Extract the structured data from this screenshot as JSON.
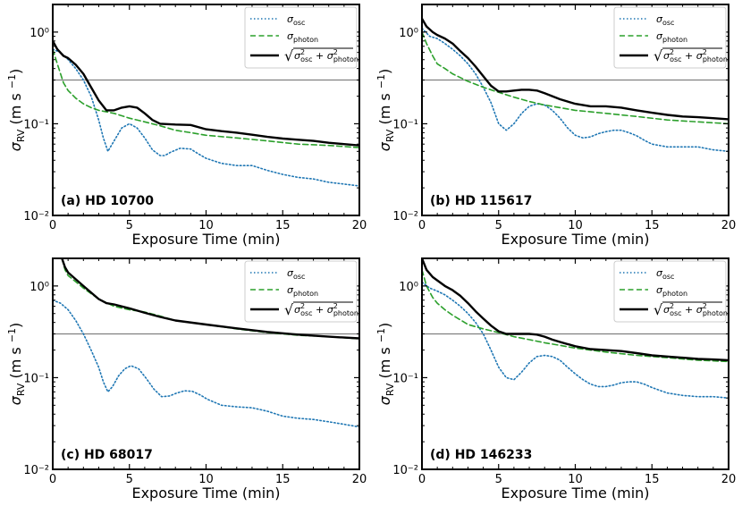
{
  "figure": {
    "xlabel": "Exposure Time (min)",
    "ylabel_main": "σ",
    "ylabel_sub": "RV",
    "ylabel_units": "(m s",
    "ylabel_exp": "−1",
    "ylabel_close": ")"
  },
  "legend": {
    "osc_symbol": "σ",
    "osc_sub": "osc",
    "photon_symbol": "σ",
    "photon_sub": "photon",
    "total_sqrt": "√",
    "total_sigma1": "σ",
    "total_sup1": "2",
    "total_sub1": "osc",
    "total_plus": "+",
    "total_sigma2": "σ",
    "total_sup2": "2",
    "total_sub2": "photon"
  },
  "colors": {
    "osc": "#1f77b4",
    "photon": "#2ca02c",
    "total": "#000000",
    "threshold": "#808080"
  },
  "chart_data": [
    {
      "type": "line",
      "title": "(a) HD 10700",
      "xlabel": "Exposure Time (min)",
      "ylabel": "σ_RV (m s^-1)",
      "xlim": [
        0,
        20
      ],
      "ylim": [
        0.01,
        2
      ],
      "yscale": "log",
      "xticks": [
        "0",
        "5",
        "10",
        "15",
        "20"
      ],
      "yticks": [
        "10⁰",
        "10⁻¹",
        "10⁻²"
      ],
      "threshold": 0.3,
      "series": [
        {
          "name": "σ_osc",
          "style": "dotted",
          "x": [
            0,
            0.5,
            1,
            1.5,
            2,
            2.5,
            3,
            3.3,
            3.6,
            4,
            4.5,
            5,
            5.5,
            6,
            6.5,
            7,
            7.3,
            7.7,
            8.3,
            9,
            9.5,
            10,
            11,
            12,
            13,
            14,
            15,
            16,
            17,
            18,
            19,
            20
          ],
          "y": [
            0.65,
            0.6,
            0.5,
            0.4,
            0.3,
            0.2,
            0.11,
            0.07,
            0.05,
            0.065,
            0.09,
            0.1,
            0.09,
            0.07,
            0.052,
            0.045,
            0.045,
            0.049,
            0.054,
            0.053,
            0.047,
            0.042,
            0.037,
            0.035,
            0.035,
            0.031,
            0.028,
            0.026,
            0.025,
            0.023,
            0.022,
            0.021
          ]
        },
        {
          "name": "σ_photon",
          "style": "dashed",
          "x": [
            0,
            0.3,
            0.7,
            1,
            1.5,
            2,
            2.5,
            3,
            4,
            5,
            6,
            7,
            8,
            9,
            10,
            12,
            14,
            16,
            18,
            20
          ],
          "y": [
            0.65,
            0.45,
            0.28,
            0.23,
            0.19,
            0.165,
            0.15,
            0.14,
            0.13,
            0.115,
            0.105,
            0.095,
            0.085,
            0.08,
            0.075,
            0.07,
            0.065,
            0.06,
            0.058,
            0.055
          ]
        },
        {
          "name": "total",
          "style": "solid",
          "x": [
            0,
            0.3,
            0.7,
            1,
            1.5,
            2,
            2.5,
            3,
            3.5,
            4,
            4.5,
            5,
            5.5,
            6,
            6.5,
            7,
            8,
            9,
            10,
            11,
            12,
            13,
            14,
            15,
            16,
            17,
            18,
            19,
            20
          ],
          "y": [
            0.8,
            0.65,
            0.55,
            0.52,
            0.44,
            0.35,
            0.25,
            0.18,
            0.14,
            0.14,
            0.15,
            0.155,
            0.15,
            0.13,
            0.11,
            0.1,
            0.098,
            0.097,
            0.087,
            0.083,
            0.08,
            0.076,
            0.072,
            0.069,
            0.067,
            0.065,
            0.062,
            0.06,
            0.058
          ]
        }
      ]
    },
    {
      "type": "line",
      "title": "(b) HD 115617",
      "xlabel": "Exposure Time (min)",
      "ylabel": "σ_RV (m s^-1)",
      "xlim": [
        0,
        20
      ],
      "ylim": [
        0.01,
        2
      ],
      "yscale": "log",
      "xticks": [
        "0",
        "5",
        "10",
        "15",
        "20"
      ],
      "yticks": [
        "10⁰",
        "10⁻¹",
        "10⁻²"
      ],
      "threshold": 0.3,
      "series": [
        {
          "name": "σ_osc",
          "style": "dotted",
          "x": [
            0,
            0.5,
            1,
            1.5,
            2,
            2.5,
            3,
            3.5,
            4,
            4.5,
            5,
            5.5,
            6,
            6.5,
            7,
            7.5,
            8,
            8.5,
            9,
            9.5,
            10,
            10.5,
            11,
            11.5,
            12,
            12.5,
            13,
            13.5,
            14,
            14.5,
            15,
            16,
            17,
            18,
            19,
            20
          ],
          "y": [
            1.1,
            0.9,
            0.85,
            0.75,
            0.65,
            0.55,
            0.45,
            0.35,
            0.25,
            0.17,
            0.1,
            0.085,
            0.1,
            0.13,
            0.155,
            0.165,
            0.16,
            0.14,
            0.115,
            0.09,
            0.075,
            0.07,
            0.072,
            0.078,
            0.082,
            0.085,
            0.085,
            0.08,
            0.074,
            0.066,
            0.06,
            0.056,
            0.056,
            0.056,
            0.052,
            0.05
          ]
        },
        {
          "name": "σ_photon",
          "style": "dashed",
          "x": [
            0,
            0.3,
            0.7,
            1,
            1.5,
            2,
            3,
            4,
            5,
            6,
            7,
            8,
            9,
            10,
            12,
            14,
            16,
            18,
            20
          ],
          "y": [
            1.0,
            0.75,
            0.55,
            0.45,
            0.4,
            0.35,
            0.29,
            0.25,
            0.22,
            0.195,
            0.175,
            0.16,
            0.15,
            0.14,
            0.13,
            0.12,
            0.11,
            0.105,
            0.1
          ]
        },
        {
          "name": "total",
          "style": "solid",
          "x": [
            0,
            0.3,
            0.7,
            1,
            1.5,
            2,
            2.5,
            3,
            3.5,
            4,
            4.5,
            5,
            5.5,
            6,
            6.5,
            7,
            7.5,
            8,
            8.5,
            9,
            10,
            11,
            12,
            13,
            14,
            15,
            16,
            17,
            18,
            19,
            20
          ],
          "y": [
            1.4,
            1.15,
            1.0,
            0.93,
            0.85,
            0.75,
            0.62,
            0.52,
            0.42,
            0.33,
            0.26,
            0.225,
            0.225,
            0.23,
            0.235,
            0.235,
            0.23,
            0.215,
            0.2,
            0.185,
            0.165,
            0.155,
            0.155,
            0.15,
            0.14,
            0.132,
            0.125,
            0.12,
            0.118,
            0.115,
            0.112
          ]
        }
      ]
    },
    {
      "type": "line",
      "title": "(c) HD 68017",
      "xlabel": "Exposure Time (min)",
      "ylabel": "σ_RV (m s^-1)",
      "xlim": [
        0,
        20
      ],
      "ylim": [
        0.01,
        2
      ],
      "yscale": "log",
      "xticks": [
        "0",
        "5",
        "10",
        "15",
        "20"
      ],
      "yticks": [
        "10⁰",
        "10⁻¹",
        "10⁻²"
      ],
      "threshold": 0.3,
      "series": [
        {
          "name": "σ_osc",
          "style": "dotted",
          "x": [
            0,
            0.5,
            1,
            1.5,
            2,
            2.5,
            3,
            3.3,
            3.6,
            3.9,
            4.3,
            4.7,
            5.1,
            5.6,
            6.1,
            6.6,
            7.1,
            7.6,
            8.1,
            8.6,
            9.1,
            9.6,
            10.1,
            11,
            12,
            13,
            14,
            15,
            16,
            17,
            18,
            19,
            20
          ],
          "y": [
            0.7,
            0.65,
            0.55,
            0.42,
            0.3,
            0.2,
            0.13,
            0.09,
            0.07,
            0.08,
            0.105,
            0.125,
            0.135,
            0.125,
            0.098,
            0.075,
            0.062,
            0.063,
            0.068,
            0.072,
            0.071,
            0.065,
            0.058,
            0.05,
            0.048,
            0.047,
            0.043,
            0.038,
            0.036,
            0.035,
            0.033,
            0.031,
            0.029
          ]
        },
        {
          "name": "σ_photon",
          "style": "dashed",
          "x": [
            0.6,
            0.8,
            1,
            2,
            3,
            4,
            5,
            6,
            7,
            8,
            10,
            12,
            14,
            16,
            18,
            20
          ],
          "y": [
            2.0,
            1.5,
            1.3,
            0.95,
            0.72,
            0.6,
            0.55,
            0.52,
            0.47,
            0.42,
            0.38,
            0.34,
            0.31,
            0.29,
            0.28,
            0.265
          ]
        },
        {
          "name": "total",
          "style": "solid",
          "x": [
            0.6,
            0.8,
            1,
            2,
            3,
            3.5,
            4,
            5,
            6,
            7,
            8,
            10,
            12,
            14,
            16,
            18,
            20
          ],
          "y": [
            2.0,
            1.6,
            1.4,
            1.0,
            0.72,
            0.65,
            0.63,
            0.57,
            0.51,
            0.46,
            0.42,
            0.38,
            0.345,
            0.315,
            0.295,
            0.28,
            0.268
          ]
        }
      ]
    },
    {
      "type": "line",
      "title": "(d) HD 146233",
      "xlabel": "Exposure Time (min)",
      "ylabel": "σ_RV (m s^-1)",
      "xlim": [
        0,
        20
      ],
      "ylim": [
        0.01,
        2
      ],
      "yscale": "log",
      "xticks": [
        "0",
        "5",
        "10",
        "15",
        "20"
      ],
      "yticks": [
        "10⁰",
        "10⁻¹",
        "10⁻²"
      ],
      "threshold": 0.3,
      "series": [
        {
          "name": "σ_osc",
          "style": "dotted",
          "x": [
            0,
            0.5,
            1,
            1.5,
            2,
            2.5,
            3,
            3.5,
            4,
            4.5,
            5,
            5.5,
            6,
            6.5,
            7,
            7.5,
            8,
            8.5,
            9,
            9.5,
            10,
            10.5,
            11,
            11.5,
            12,
            12.5,
            13,
            13.5,
            14,
            14.5,
            15,
            16,
            17,
            18,
            19,
            20
          ],
          "y": [
            1.1,
            0.95,
            0.88,
            0.8,
            0.7,
            0.6,
            0.5,
            0.4,
            0.3,
            0.2,
            0.13,
            0.1,
            0.095,
            0.115,
            0.145,
            0.17,
            0.175,
            0.17,
            0.155,
            0.13,
            0.11,
            0.095,
            0.085,
            0.08,
            0.08,
            0.083,
            0.088,
            0.09,
            0.09,
            0.085,
            0.078,
            0.068,
            0.064,
            0.062,
            0.062,
            0.06
          ]
        },
        {
          "name": "σ_photon",
          "style": "dashed",
          "x": [
            0,
            0.3,
            0.7,
            1,
            1.5,
            2,
            3,
            4,
            5,
            6,
            7,
            8,
            9,
            10,
            12,
            14,
            16,
            18,
            20
          ],
          "y": [
            1.5,
            1.0,
            0.75,
            0.65,
            0.55,
            0.48,
            0.38,
            0.34,
            0.31,
            0.28,
            0.26,
            0.24,
            0.225,
            0.21,
            0.19,
            0.175,
            0.165,
            0.155,
            0.15
          ]
        },
        {
          "name": "total",
          "style": "solid",
          "x": [
            0,
            0.3,
            0.7,
            1,
            1.5,
            2,
            2.5,
            3,
            3.5,
            4,
            4.5,
            5,
            5.5,
            6,
            6.5,
            7,
            7.5,
            8,
            8.5,
            9,
            10,
            11,
            12,
            13,
            14,
            15,
            16,
            17,
            18,
            19,
            20
          ],
          "y": [
            2.0,
            1.5,
            1.25,
            1.15,
            1.0,
            0.9,
            0.78,
            0.65,
            0.53,
            0.44,
            0.37,
            0.32,
            0.3,
            0.3,
            0.3,
            0.3,
            0.295,
            0.28,
            0.26,
            0.245,
            0.22,
            0.205,
            0.2,
            0.195,
            0.185,
            0.175,
            0.17,
            0.165,
            0.16,
            0.158,
            0.155
          ]
        }
      ]
    }
  ]
}
